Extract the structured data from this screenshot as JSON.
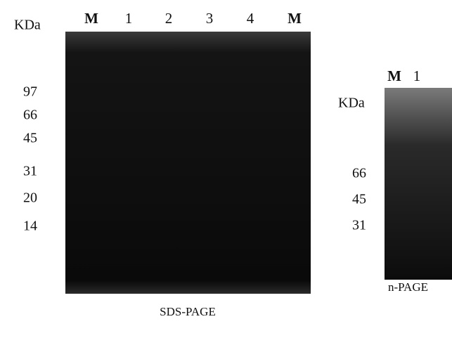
{
  "panels": [
    {
      "lanes": [
        "M",
        "1",
        "2",
        "3",
        "4",
        "M"
      ],
      "unit": "KDa",
      "markers": [
        97,
        66,
        45,
        31,
        20,
        14
      ],
      "caption": "SDS-PAGE"
    },
    {
      "lanes": [
        "M",
        "1"
      ],
      "unit": "KDa",
      "markers": [
        66,
        45,
        31
      ],
      "caption": "n-PAGE"
    }
  ]
}
